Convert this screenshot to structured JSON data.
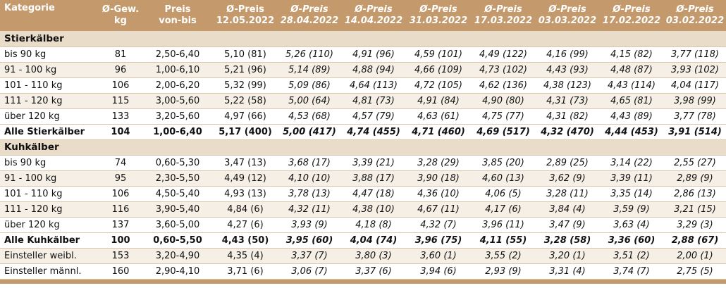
{
  "header": {
    "kategorie": "Kategorie",
    "gew": "Ø-Gew.\nkg",
    "preis": "Preis\nvon-bis",
    "p1": "Ø-Preis\n12.05.2022",
    "p2": "Ø-Preis\n28.04.2022",
    "p3": "Ø-Preis\n14.04.2022",
    "p4": "Ø-Preis\n31.03.2022",
    "p5": "Ø-Preis\n17.03.2022",
    "p6": "Ø-Preis\n03.03.2022",
    "p7": "Ø-Preis\n17.02.2022",
    "p8": "Ø-Preis\n03.02.2022"
  },
  "sections": [
    {
      "title": "Stierkälber",
      "rows": [
        {
          "label": "bis 90 kg",
          "gew": "81",
          "preis": "2,50-6,40",
          "p": [
            "5,10 (81)",
            "5,26 (110)",
            "4,91 (96)",
            "4,59 (101)",
            "4,49 (122)",
            "4,16 (99)",
            "4,15 (82)",
            "3,77 (118)"
          ]
        },
        {
          "label": "91 - 100 kg",
          "gew": "96",
          "preis": "1,00-6,10",
          "p": [
            "5,21 (96)",
            "5,14 (89)",
            "4,88 (94)",
            "4,66 (109)",
            "4,73 (102)",
            "4,43 (93)",
            "4,48 (87)",
            "3,93 (102)"
          ]
        },
        {
          "label": "101 - 110 kg",
          "gew": "106",
          "preis": "2,00-6,20",
          "p": [
            "5,32 (99)",
            "5,09 (86)",
            "4,64 (113)",
            "4,72 (105)",
            "4,62 (136)",
            "4,38 (123)",
            "4,43 (114)",
            "4,04 (117)"
          ]
        },
        {
          "label": "111 - 120 kg",
          "gew": "115",
          "preis": "3,00-5,60",
          "p": [
            "5,22 (58)",
            "5,00 (64)",
            "4,81 (73)",
            "4,91 (84)",
            "4,90 (80)",
            "4,31 (73)",
            "4,65 (81)",
            "3,98 (99)"
          ]
        },
        {
          "label": "über 120 kg",
          "gew": "133",
          "preis": "3,20-5,60",
          "p": [
            "4,97 (66)",
            "4,53 (68)",
            "4,57 (79)",
            "4,63 (61)",
            "4,75 (77)",
            "4,31 (82)",
            "4,43 (89)",
            "3,77 (78)"
          ]
        }
      ],
      "total": {
        "label": "Alle Stierkälber",
        "gew": "104",
        "preis": "1,00-6,40",
        "p": [
          "5,17 (400)",
          "5,00 (417)",
          "4,74 (455)",
          "4,71 (460)",
          "4,69 (517)",
          "4,32 (470)",
          "4,44 (453)",
          "3,91 (514)"
        ]
      }
    },
    {
      "title": "Kuhkälber",
      "rows": [
        {
          "label": "bis 90 kg",
          "gew": "74",
          "preis": "0,60-5,30",
          "p": [
            "3,47 (13)",
            "3,68 (17)",
            "3,39 (21)",
            "3,28 (29)",
            "3,85 (20)",
            "2,89 (25)",
            "3,14 (22)",
            "2,55 (27)"
          ]
        },
        {
          "label": "91 - 100 kg",
          "gew": "95",
          "preis": "2,30-5,50",
          "p": [
            "4,49 (12)",
            "4,10 (10)",
            "3,88 (17)",
            "3,90 (18)",
            "4,60 (13)",
            "3,62 (9)",
            "3,39 (11)",
            "2,89 (9)"
          ]
        },
        {
          "label": "101 - 110 kg",
          "gew": "106",
          "preis": "4,50-5,40",
          "p": [
            "4,93 (13)",
            "3,78 (13)",
            "4,47 (18)",
            "4,36 (10)",
            "4,06 (5)",
            "3,28 (11)",
            "3,35 (14)",
            "2,86 (13)"
          ]
        },
        {
          "label": "111 - 120 kg",
          "gew": "116",
          "preis": "3,90-5,40",
          "p": [
            "4,84 (6)",
            "4,32 (11)",
            "4,38 (10)",
            "4,67 (11)",
            "4,17 (6)",
            "3,84 (4)",
            "3,59 (9)",
            "3,21 (15)"
          ]
        },
        {
          "label": "über 120 kg",
          "gew": "137",
          "preis": "3,60-5,00",
          "p": [
            "4,27 (6)",
            "3,93 (9)",
            "4,18 (8)",
            "4,32 (7)",
            "3,96 (11)",
            "3,47 (9)",
            "3,63 (4)",
            "3,29 (3)"
          ]
        }
      ],
      "total": {
        "label": "Alle Kuhkälber",
        "gew": "100",
        "preis": "0,60-5,50",
        "p": [
          "4,43 (50)",
          "3,95 (60)",
          "4,04 (74)",
          "3,96 (75)",
          "4,11 (55)",
          "3,28 (58)",
          "3,36 (60)",
          "2,88 (67)"
        ]
      }
    }
  ],
  "extra_rows": [
    {
      "label": "Einsteller weibl.",
      "gew": "153",
      "preis": "3,20-4,90",
      "p": [
        "4,35 (4)",
        "3,37 (7)",
        "3,80 (3)",
        "3,60 (1)",
        "3,55 (2)",
        "3,20 (1)",
        "3,51 (2)",
        "2,00 (1)"
      ]
    },
    {
      "label": "Einsteller männl.",
      "gew": "160",
      "preis": "2,90-4,10",
      "p": [
        "3,71 (6)",
        "3,06 (7)",
        "3,37 (6)",
        "3,94 (6)",
        "2,93 (9)",
        "3,31 (4)",
        "3,74 (7)",
        "2,75 (5)"
      ]
    }
  ]
}
